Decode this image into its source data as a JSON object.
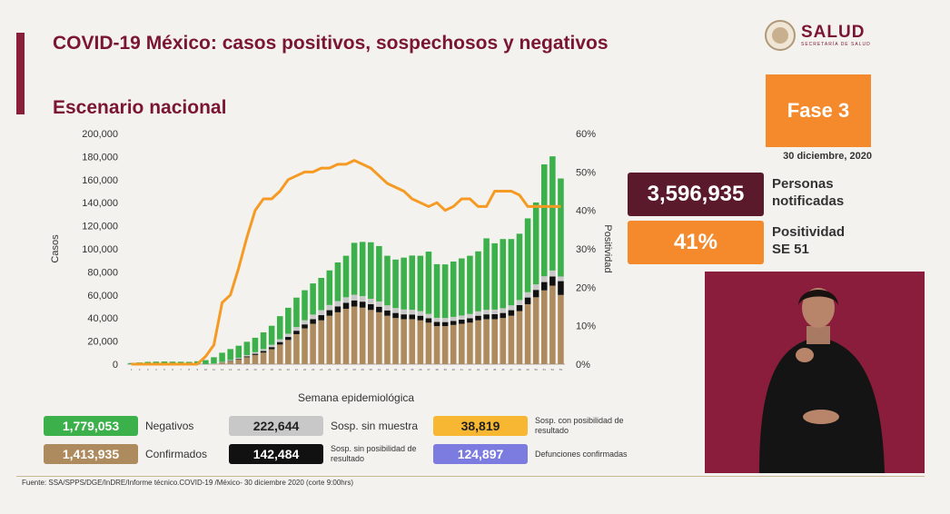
{
  "header": {
    "title": "COVID-19 México: casos positivos, sospechosos y negativos",
    "subtitle": "Escenario nacional",
    "logo_text": "SALUD",
    "logo_sub": "SECRETARÍA DE SALUD"
  },
  "side": {
    "phase": "Fase 3",
    "date": "30 diciembre, 2020",
    "personas_value": "3,596,935",
    "personas_label_1": "Personas",
    "personas_label_2": "notificadas",
    "positividad_value": "41%",
    "positividad_label_1": "Positividad",
    "positividad_label_2": "SE 51"
  },
  "legend": {
    "negativos_value": "1,779,053",
    "negativos_label": "Negativos",
    "sin_muestra_value": "222,644",
    "sin_muestra_label": "Sosp. sin muestra",
    "con_posib_value": "38,819",
    "con_posib_label": "Sosp. con posibilidad de resultado",
    "confirmados_value": "1,413,935",
    "confirmados_label": "Confirmados",
    "sin_posib_value": "142,484",
    "sin_posib_label": "Sosp. sin posibilidad de resultado",
    "defunciones_value": "124,897",
    "defunciones_label": "Defunciones confirmadas"
  },
  "footer": "Fuente: SSA/SPPS/DGE/InDRE/Informe técnico.COVID-19 /México- 30 diciembre 2020 (corte 9:00hrs)",
  "colors": {
    "negativos": "#3cb04a",
    "sin_muestra": "#c8c8c8",
    "confirmados": "#ad8b5e",
    "sin_posibilidad": "#111111",
    "con_posibilidad": "#f7b733",
    "defunciones": "#7b7be0",
    "positividad_line": "#f59a23",
    "brand": "#7a1633",
    "phase": "#f58a2c"
  },
  "chart_data": {
    "type": "bar",
    "xlabel": "Semana epidemiológica",
    "ylabel": "Casos",
    "y2label": "Positividad",
    "ylim": [
      0,
      200000
    ],
    "y2lim": [
      0,
      60
    ],
    "yticks": [
      "0",
      "20,000",
      "40,000",
      "60,000",
      "80,000",
      "100,000",
      "120,000",
      "140,000",
      "160,000",
      "180,000",
      "200,000"
    ],
    "y2ticks": [
      "0%",
      "10%",
      "20%",
      "30%",
      "40%",
      "50%",
      "60%"
    ],
    "categories": [
      "1",
      "2",
      "3",
      "4",
      "5",
      "6",
      "7",
      "8",
      "9",
      "10",
      "11",
      "12",
      "13",
      "14",
      "15",
      "16",
      "17",
      "18",
      "19",
      "20",
      "21",
      "22",
      "23",
      "24",
      "25",
      "26",
      "27",
      "28",
      "29",
      "30",
      "31",
      "32",
      "33",
      "34",
      "35",
      "36",
      "37",
      "38",
      "39",
      "40",
      "41",
      "42",
      "43",
      "44",
      "45",
      "46",
      "47",
      "48",
      "49",
      "50",
      "51",
      "52",
      "53"
    ],
    "series": [
      {
        "name": "Confirmados",
        "values": [
          0,
          0,
          0,
          0,
          0,
          0,
          0,
          0,
          0,
          0,
          200,
          1200,
          2500,
          4000,
          6000,
          8000,
          10000,
          13000,
          17000,
          21000,
          26000,
          31000,
          35000,
          38000,
          42000,
          45000,
          48000,
          50000,
          49000,
          47000,
          45000,
          42000,
          40000,
          39000,
          39000,
          38000,
          36000,
          33000,
          33000,
          34000,
          35000,
          36000,
          38000,
          39000,
          39000,
          40000,
          42000,
          46000,
          52000,
          58000,
          64000,
          68000,
          60000
        ]
      },
      {
        "name": "Sosp. sin posibilidad de resultado",
        "values": [
          0,
          0,
          0,
          0,
          0,
          0,
          0,
          0,
          0,
          0,
          0,
          200,
          400,
          600,
          800,
          1000,
          1400,
          1800,
          2200,
          2600,
          3000,
          3500,
          4000,
          4500,
          4800,
          5000,
          5200,
          5300,
          5200,
          5000,
          4800,
          4600,
          4400,
          4200,
          4100,
          4000,
          3800,
          3600,
          3500,
          3500,
          3600,
          3800,
          4000,
          4200,
          4300,
          4400,
          4800,
          5200,
          5800,
          6400,
          7200,
          8000,
          12000
        ]
      },
      {
        "name": "Sosp. sin muestra",
        "values": [
          0,
          0,
          0,
          0,
          0,
          0,
          0,
          0,
          0,
          0,
          300,
          500,
          700,
          900,
          1100,
          1400,
          1700,
          2000,
          2400,
          2800,
          3200,
          3600,
          4000,
          4300,
          4500,
          4700,
          4800,
          4900,
          4800,
          4700,
          4600,
          4400,
          4300,
          4200,
          4100,
          4000,
          3800,
          3600,
          3500,
          3500,
          3600,
          3700,
          3800,
          3900,
          4000,
          4100,
          4200,
          4400,
          4600,
          4800,
          5000,
          5200,
          4000
        ]
      },
      {
        "name": "Negativos",
        "values": [
          1000,
          1500,
          2000,
          2200,
          2300,
          2200,
          2100,
          2000,
          2500,
          3500,
          5500,
          8000,
          9500,
          10500,
          11500,
          12500,
          14500,
          16500,
          20000,
          22500,
          25500,
          26000,
          27000,
          28000,
          30000,
          33500,
          36000,
          45000,
          47000,
          49000,
          48000,
          43000,
          42000,
          45000,
          47000,
          48000,
          54000,
          46500,
          46500,
          48000,
          49500,
          50500,
          52000,
          62000,
          57500,
          60000,
          57500,
          57500,
          64000,
          71000,
          97000,
          99000,
          85000
        ]
      }
    ],
    "line_series": {
      "name": "Positividad",
      "axis": "right",
      "values": [
        0,
        0,
        0,
        0,
        0,
        0,
        0,
        0,
        0,
        2,
        5,
        16,
        18,
        25,
        33,
        40,
        43,
        43,
        45,
        48,
        49,
        50,
        50,
        51,
        51,
        52,
        52,
        53,
        52,
        51,
        49,
        47,
        46,
        45,
        43,
        42,
        41,
        42,
        40,
        41,
        43,
        43,
        41,
        41,
        45,
        45,
        45,
        44,
        41,
        41,
        41,
        41,
        41
      ]
    },
    "grid": false,
    "legend_placement": "bottom"
  }
}
